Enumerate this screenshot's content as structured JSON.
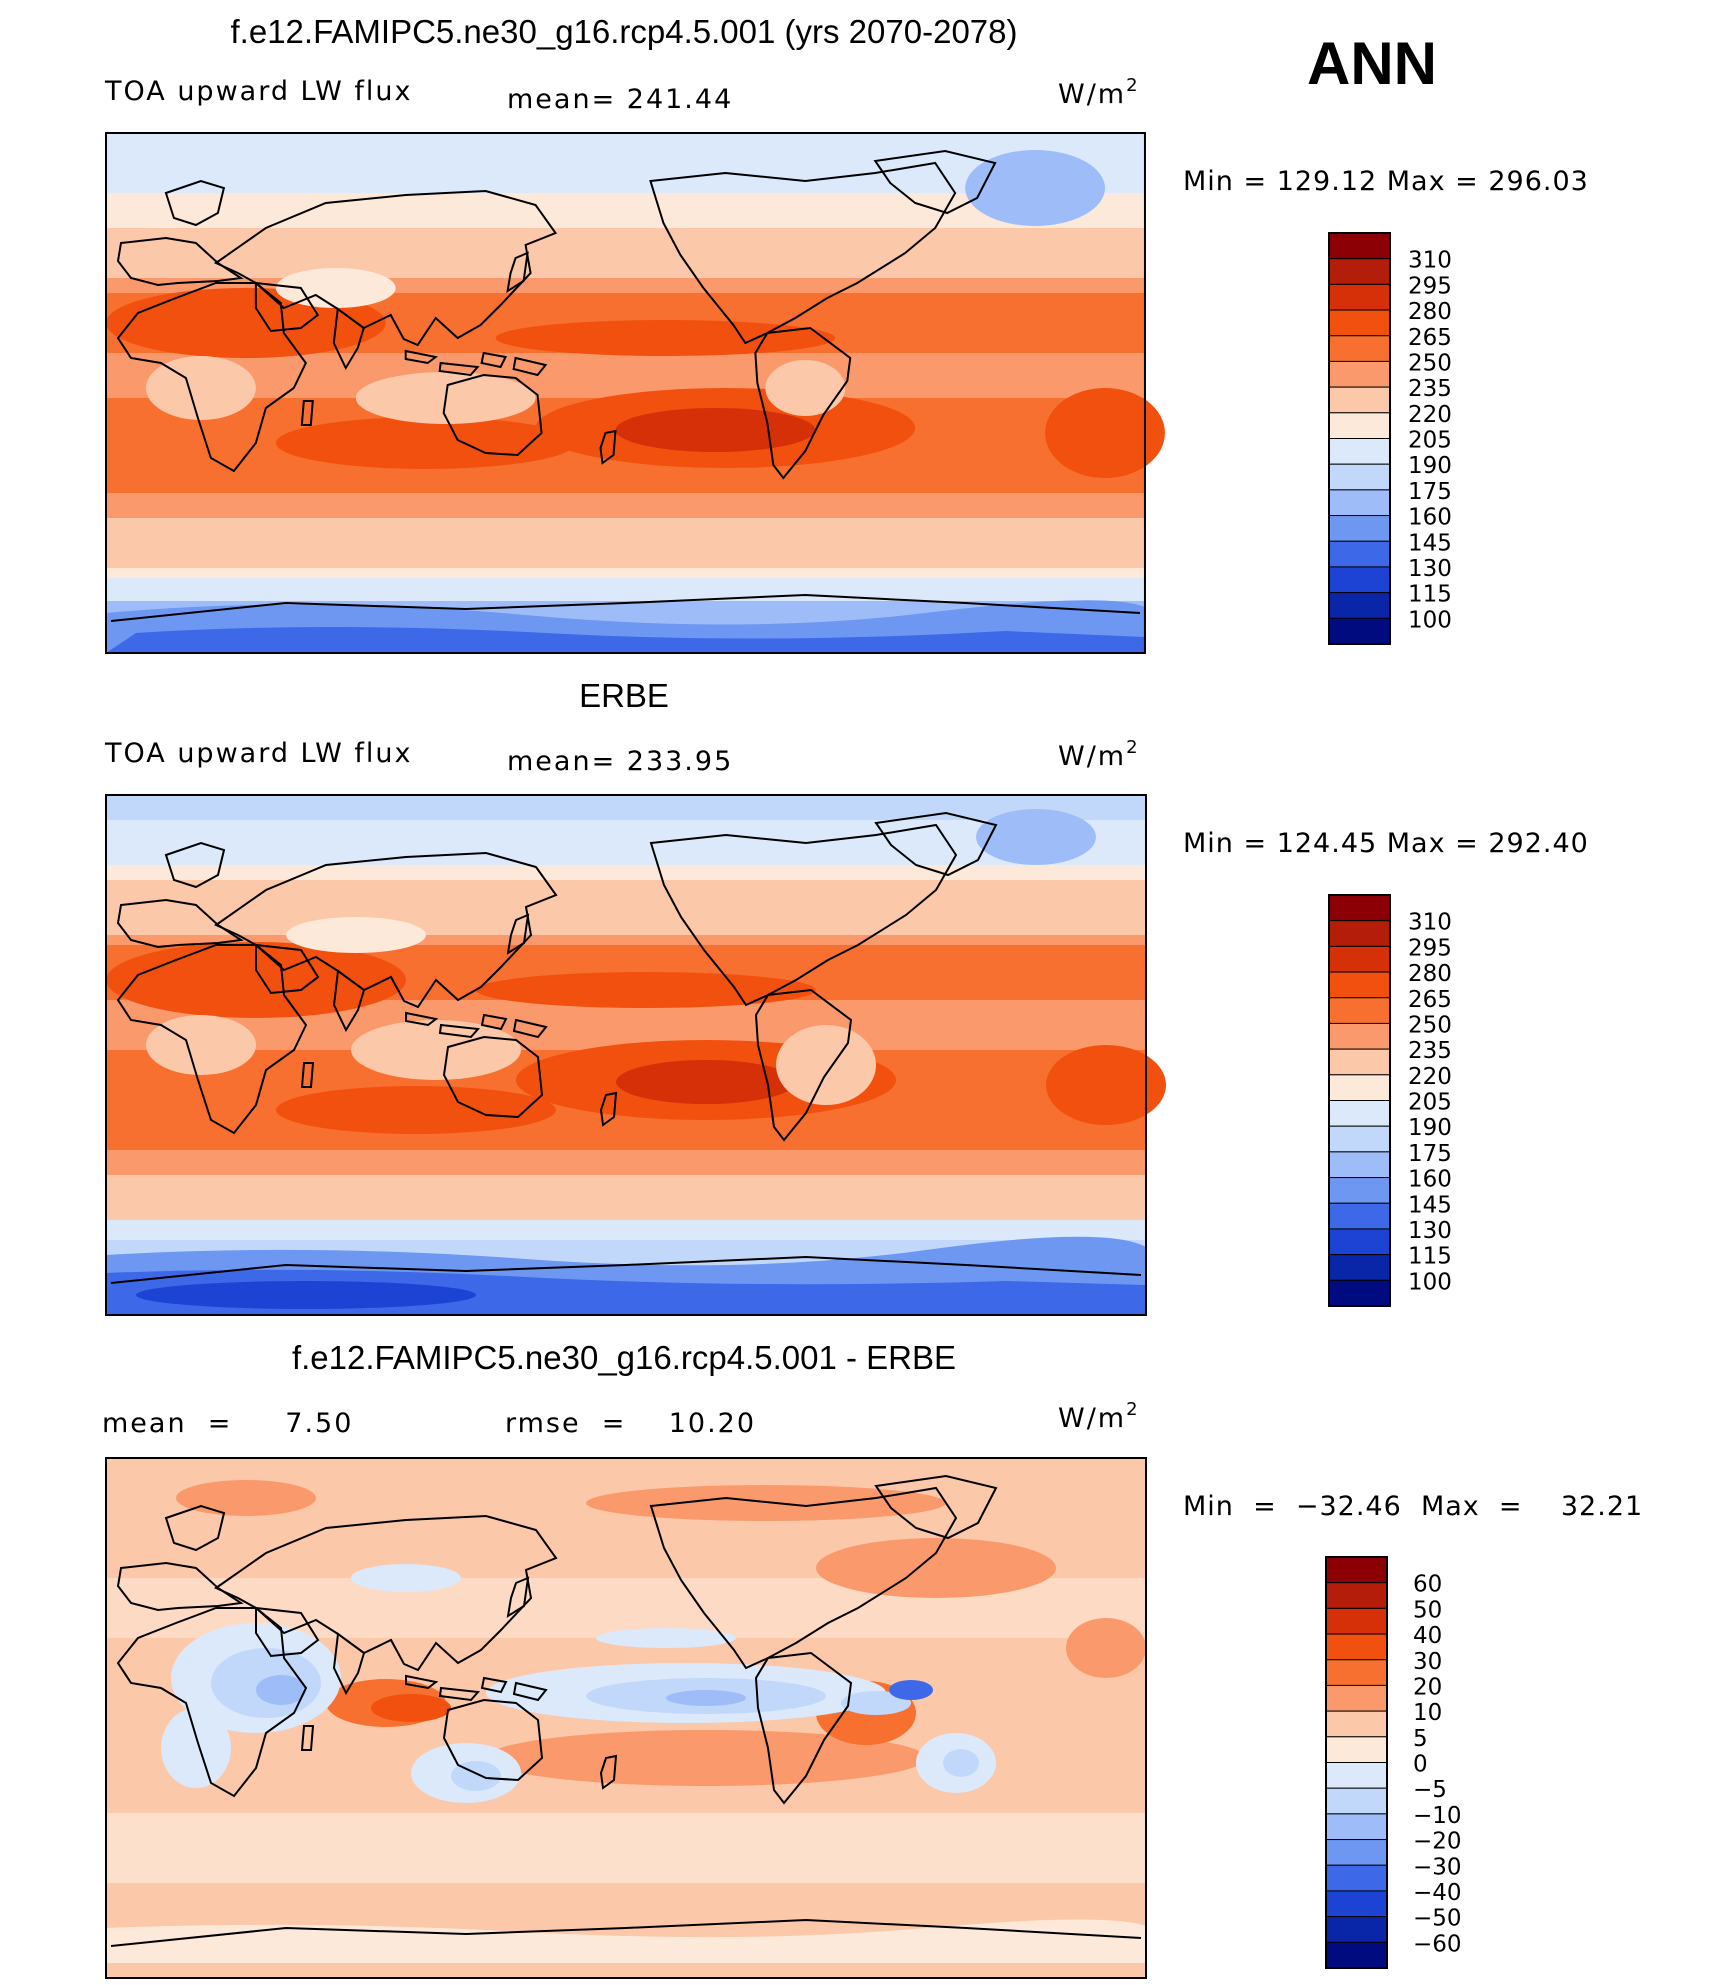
{
  "season": "ANN",
  "units_base": "W/m",
  "units_exp": "2",
  "colors": {
    "frame": "#000000",
    "coast": "#000000"
  },
  "panels": [
    {
      "title": "f.e12.FAMIPC5.ne30_g16.rcp4.5.001 (yrs 2070-2078)",
      "left_label": "TOA upward LW flux",
      "center_label": "mean= 241.44",
      "min_max": "Min  =  129.12  Max  =  296.03"
    },
    {
      "title": "ERBE",
      "left_label": "TOA upward LW flux",
      "center_label": "mean= 233.95",
      "min_max": "Min  =  124.45  Max  =  292.40"
    },
    {
      "title": "f.e12.FAMIPC5.ne30_g16.rcp4.5.001 - ERBE",
      "left_label": "mean  =     7.50",
      "center_label": "rmse  =    10.20",
      "min_max": "Min  =  −32.46  Max  =    32.21"
    }
  ],
  "chart_data": [
    {
      "type": "heatmap",
      "title": "f.e12.FAMIPC5.ne30_g16.rcp4.5.001 (yrs 2070-2078)",
      "variable": "TOA upward LW flux",
      "units": "W/m2",
      "mean": 241.44,
      "min": 129.12,
      "max": 296.03,
      "colorbar_levels": [
        "310",
        "295",
        "280",
        "265",
        "250",
        "235",
        "220",
        "205",
        "190",
        "175",
        "160",
        "145",
        "130",
        "115",
        "100"
      ],
      "colorbar_colors": [
        "#8c0005",
        "#b31d09",
        "#d63008",
        "#f2500f",
        "#f7702f",
        "#fa9a6c",
        "#fcc8aa",
        "#fde9d9",
        "#dce9fb",
        "#c2d8fb",
        "#9ebdf8",
        "#6e97f2",
        "#3d68e8",
        "#1d43d4",
        "#0a26a8",
        "#000b80"
      ]
    },
    {
      "type": "heatmap",
      "title": "ERBE",
      "variable": "TOA upward LW flux",
      "units": "W/m2",
      "mean": 233.95,
      "min": 124.45,
      "max": 292.4,
      "colorbar_levels": [
        "310",
        "295",
        "280",
        "265",
        "250",
        "235",
        "220",
        "205",
        "190",
        "175",
        "160",
        "145",
        "130",
        "115",
        "100"
      ],
      "colorbar_colors": [
        "#8c0005",
        "#b31d09",
        "#d63008",
        "#f2500f",
        "#f7702f",
        "#fa9a6c",
        "#fcc8aa",
        "#fde9d9",
        "#dce9fb",
        "#c2d8fb",
        "#9ebdf8",
        "#6e97f2",
        "#3d68e8",
        "#1d43d4",
        "#0a26a8",
        "#000b80"
      ]
    },
    {
      "type": "heatmap",
      "title": "f.e12.FAMIPC5.ne30_g16.rcp4.5.001 - ERBE",
      "units": "W/m2",
      "mean": 7.5,
      "rmse": 10.2,
      "min": -32.46,
      "max": 32.21,
      "colorbar_levels": [
        "60",
        "50",
        "40",
        "30",
        "20",
        "10",
        "5",
        "0",
        "−5",
        "−10",
        "−20",
        "−30",
        "−40",
        "−50",
        "−60"
      ],
      "colorbar_colors": [
        "#8c0005",
        "#b31d09",
        "#d63008",
        "#f2500f",
        "#f7702f",
        "#fa9a6c",
        "#fcc8aa",
        "#fde9d9",
        "#dce9fb",
        "#c2d8fb",
        "#9ebdf8",
        "#6e97f2",
        "#3d68e8",
        "#1d43d4",
        "#0a26a8",
        "#000b80"
      ]
    }
  ]
}
